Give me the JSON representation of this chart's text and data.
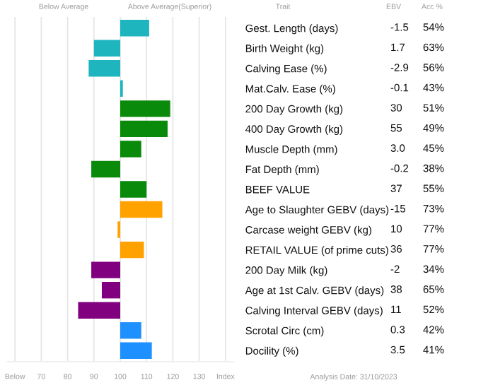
{
  "chart_data": {
    "type": "bar",
    "orientation": "horizontal",
    "base": [
      100,
      100,
      100,
      100,
      100,
      100,
      100,
      100,
      100,
      100,
      100,
      100,
      100,
      100,
      100,
      100,
      100
    ],
    "categories": [
      "Gest. Length (days)",
      "Birth Weight (kg)",
      "Calving Ease (%)",
      "Mat.Calv. Ease (%)",
      "200 Day Growth (kg)",
      "400 Day Growth (kg)",
      "Muscle Depth (mm)",
      "Fat Depth (mm)",
      "BEEF VALUE",
      "Age to Slaughter GEBV (days)",
      "Carcase weight GEBV (kg)",
      "RETAIL VALUE (of prime cuts)",
      "200 Day Milk (kg)",
      "Age at 1st Calv. GEBV (days)",
      "Calving Interval GEBV (days)",
      "Scrotal Circ (cm)",
      "Docility (%)"
    ],
    "values": [
      11,
      -10,
      -12,
      1,
      19,
      18,
      8,
      -11,
      10,
      16,
      -1,
      9,
      -11,
      -7,
      -16,
      8,
      12
    ],
    "colors": [
      "#1fb5bf",
      "#1fb5bf",
      "#1fb5bf",
      "#1fb5bf",
      "#0a8a0a",
      "#0a8a0a",
      "#0a8a0a",
      "#0a8a0a",
      "#0a8a0a",
      "#ffa200",
      "#ffa200",
      "#ffa200",
      "#800080",
      "#800080",
      "#800080",
      "#1e90ff",
      "#1e90ff"
    ],
    "xlim": [
      57,
      143
    ],
    "xticks": [
      {
        "value": 60,
        "label": "Below"
      },
      70,
      80,
      90,
      100,
      110,
      120,
      130,
      {
        "value": 140,
        "label": "Index"
      }
    ],
    "grid": "x",
    "annotations": [
      "Below Average",
      "Above Average(Superior)",
      "Trait",
      "EBV",
      "Acc %",
      "Analysis Date: 31/10/2023",
      "-1.5",
      "54%",
      "1.7",
      "63%",
      "-2.9",
      "56%",
      "-0.1",
      "43%",
      "30",
      "51%",
      "55",
      "49%",
      "3.0",
      "45%",
      "-0.2",
      "38%",
      "37",
      "55%",
      "-15",
      "73%",
      "10",
      "77%",
      "36",
      "77%",
      "-2",
      "34%",
      "38",
      "65%",
      "11",
      "52%",
      "0.3",
      "42%",
      "3.5",
      "41%"
    ]
  }
}
